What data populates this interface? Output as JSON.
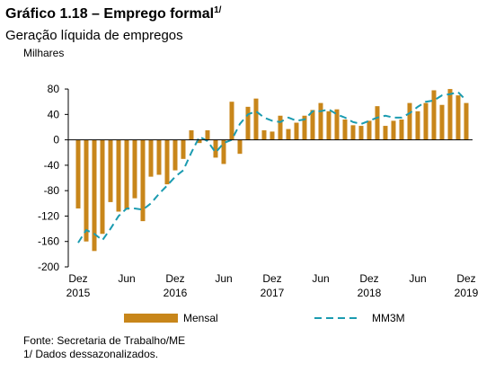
{
  "chart_data": {
    "type": "bar",
    "title": "Gráfico 1.18 – Emprego formal",
    "title_note": "1/",
    "subtitle": "Geração líquida de empregos",
    "y_label": "Milhares",
    "categories": [
      "Dez",
      null,
      null,
      null,
      null,
      null,
      "Jun",
      null,
      null,
      null,
      null,
      null,
      "Dez",
      null,
      null,
      null,
      null,
      null,
      "Jun",
      null,
      null,
      null,
      null,
      null,
      "Dez",
      null,
      null,
      null,
      null,
      null,
      "Jun",
      null,
      null,
      null,
      null,
      null,
      "Dez",
      null,
      null,
      null,
      null,
      null,
      "Jun",
      null,
      null,
      null,
      null,
      null,
      "Dez"
    ],
    "x_years": [
      "2015",
      null,
      null,
      null,
      null,
      null,
      null,
      null,
      null,
      null,
      null,
      null,
      "2016",
      null,
      null,
      null,
      null,
      null,
      null,
      null,
      null,
      null,
      null,
      null,
      "2017",
      null,
      null,
      null,
      null,
      null,
      null,
      null,
      null,
      null,
      null,
      null,
      "2018",
      null,
      null,
      null,
      null,
      null,
      null,
      null,
      null,
      null,
      null,
      null,
      "2019"
    ],
    "series": [
      {
        "name": "Mensal",
        "color": "#c8861a",
        "values": [
          -108,
          -160,
          -175,
          -148,
          -98,
          -113,
          -110,
          -92,
          -128,
          -58,
          -55,
          -70,
          -48,
          -30,
          15,
          -5,
          15,
          -28,
          -38,
          60,
          -22,
          52,
          65,
          15,
          13,
          38,
          17,
          27,
          38,
          47,
          58,
          45,
          48,
          32,
          23,
          22,
          30,
          53,
          22,
          30,
          32,
          58,
          45,
          58,
          78,
          55,
          80,
          70,
          58
        ]
      },
      {
        "name": "MM3M",
        "color": "#1b9bb0",
        "type": "line",
        "values": [
          -162,
          -142,
          -148,
          -158,
          -140,
          -120,
          -108,
          -108,
          -110,
          -100,
          -85,
          -72,
          -58,
          -48,
          -20,
          5,
          -2,
          -20,
          -5,
          0,
          25,
          40,
          45,
          35,
          30,
          28,
          35,
          30,
          32,
          45,
          45,
          48,
          40,
          35,
          28,
          25,
          30,
          35,
          38,
          35,
          35,
          42,
          52,
          60,
          62,
          70,
          72,
          75,
          62
        ]
      }
    ],
    "ylim": [
      -200,
      90
    ],
    "yticks": [
      -200,
      -160,
      -120,
      -80,
      -40,
      0,
      40,
      80
    ],
    "source": "Fonte: Secretaria de Trabalho/ME",
    "note": "1/ Dados dessazonalizados."
  }
}
